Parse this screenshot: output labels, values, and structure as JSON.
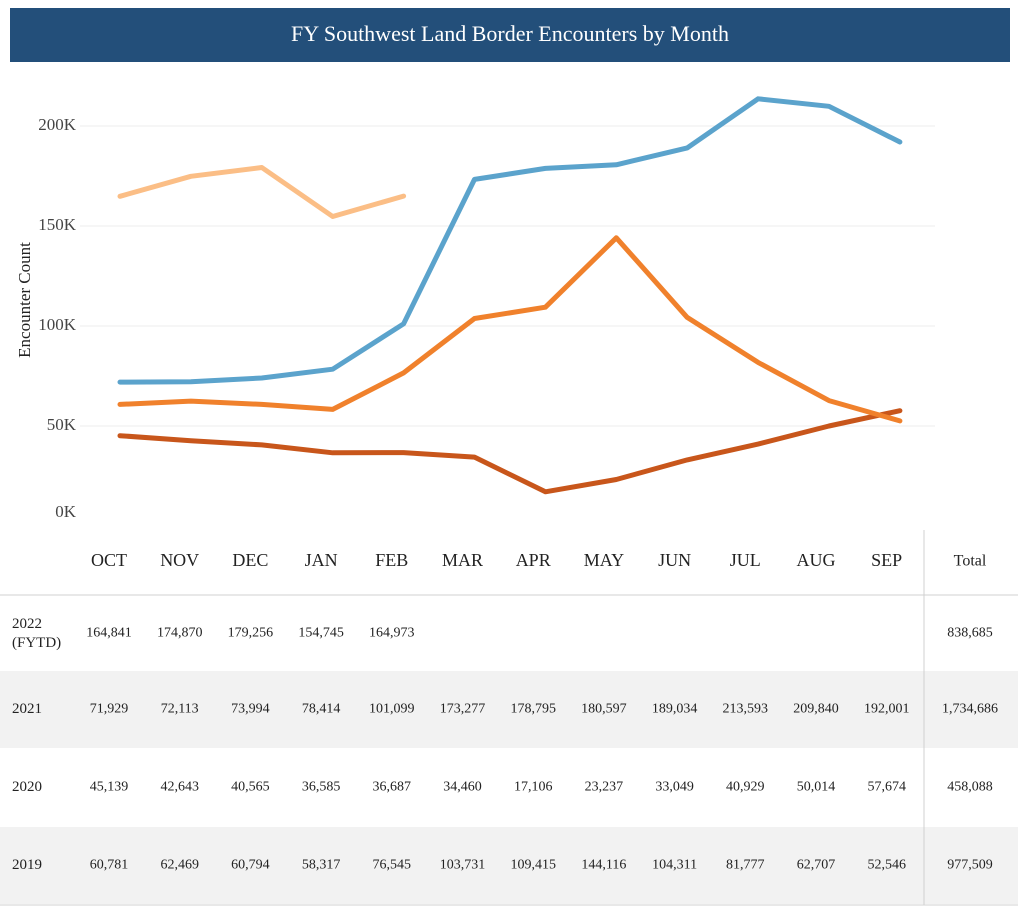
{
  "chart_data": {
    "type": "line",
    "title": "FY Southwest Land Border Encounters by Month",
    "y_label": "Encounter Count",
    "categories": [
      "OCT",
      "NOV",
      "DEC",
      "JAN",
      "FEB",
      "MAR",
      "APR",
      "MAY",
      "JUN",
      "JUL",
      "AUG",
      "SEP"
    ],
    "total_label": "Total",
    "ylim": [
      0,
      220000
    ],
    "yticks": [
      {
        "value": 0,
        "label": "0K"
      },
      {
        "value": 50000,
        "label": "50K"
      },
      {
        "value": 100000,
        "label": "100K"
      },
      {
        "value": 150000,
        "label": "150K"
      },
      {
        "value": 200000,
        "label": "200K"
      }
    ],
    "grid": true,
    "series": [
      {
        "name": "2022 (FYTD)",
        "color": "#fbbe86",
        "values": [
          164841,
          174870,
          179256,
          154745,
          164973,
          null,
          null,
          null,
          null,
          null,
          null,
          null
        ],
        "value_labels": [
          "164,841",
          "174,870",
          "179,256",
          "154,745",
          "164,973",
          null,
          null,
          null,
          null,
          null,
          null,
          null
        ],
        "total": "838,685"
      },
      {
        "name": "2021",
        "color": "#5ba3cc",
        "values": [
          71929,
          72113,
          73994,
          78414,
          101099,
          173277,
          178795,
          180597,
          189034,
          213593,
          209840,
          192001
        ],
        "value_labels": [
          "71,929",
          "72,113",
          "73,994",
          "78,414",
          "101,099",
          "173,277",
          "178,795",
          "180,597",
          "189,034",
          "213,593",
          "209,840",
          "192,001"
        ],
        "total": "1,734,686"
      },
      {
        "name": "2020",
        "color": "#c8561b",
        "values": [
          45139,
          42643,
          40565,
          36585,
          36687,
          34460,
          17106,
          23237,
          33049,
          40929,
          50014,
          57674
        ],
        "value_labels": [
          "45,139",
          "42,643",
          "40,565",
          "36,585",
          "36,687",
          "34,460",
          "17,106",
          "23,237",
          "33,049",
          "40,929",
          "50,014",
          "57,674"
        ],
        "total": "458,088"
      },
      {
        "name": "2019",
        "color": "#f0812c",
        "values": [
          60781,
          62469,
          60794,
          58317,
          76545,
          103731,
          109415,
          144116,
          104311,
          81777,
          62707,
          52546
        ],
        "value_labels": [
          "60,781",
          "62,469",
          "60,794",
          "58,317",
          "76,545",
          "103,731",
          "109,415",
          "144,116",
          "104,311",
          "81,777",
          "62,707",
          "52,546"
        ],
        "total": "977,509"
      }
    ]
  }
}
